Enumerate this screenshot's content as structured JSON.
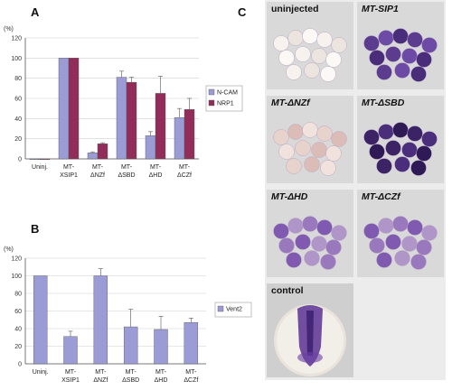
{
  "panels": {
    "a_letter": "A",
    "b_letter": "B",
    "c_letter": "C"
  },
  "colors": {
    "ncam": "#9b9bd6",
    "nrp1": "#922d5a",
    "vent2": "#9b9bd6",
    "tile_bg": "#d9d9d9",
    "purple": "#4b2a7a"
  },
  "chart_data": [
    {
      "type": "bar",
      "panel": "A",
      "ylabel": "(%)",
      "ylim": [
        0,
        120
      ],
      "yticks": [
        0,
        20,
        40,
        60,
        80,
        100,
        120
      ],
      "categories": [
        "Uninj.",
        "MT-\nXSIP1",
        "MT-\nΔNZf",
        "MT-\nΔSBD",
        "MT-\nΔHD",
        "MT-\nΔCZf"
      ],
      "series": [
        {
          "name": "N-CAM",
          "values": [
            0,
            100,
            6,
            81,
            23,
            41
          ],
          "errors": [
            0,
            0,
            1,
            6,
            4,
            9
          ]
        },
        {
          "name": "NRP1",
          "values": [
            0,
            100,
            15,
            76,
            65,
            49
          ],
          "errors": [
            0,
            0,
            1,
            5,
            17,
            11
          ]
        }
      ],
      "legend_position": "right"
    },
    {
      "type": "bar",
      "panel": "B",
      "ylabel": "(%)",
      "ylim": [
        0,
        120
      ],
      "yticks": [
        0,
        20,
        40,
        60,
        80,
        100,
        120
      ],
      "categories": [
        "Uninj.",
        "MT-\nXSIP1",
        "MT-\nΔNZf",
        "MT-\nΔSBD",
        "MT-\nΔHD",
        "MT-\nΔCZf"
      ],
      "series": [
        {
          "name": "Vent2",
          "values": [
            100,
            31,
            100,
            42,
            39,
            47
          ],
          "errors": [
            0,
            6,
            8,
            20,
            15,
            5
          ]
        }
      ],
      "legend_position": "right"
    }
  ],
  "photo_labels": [
    "uninjected",
    "MT-SIP1",
    "MT-ΔNZf",
    "MT-ΔSBD",
    "MT-ΔHD",
    "MT-ΔCZf",
    "control"
  ]
}
